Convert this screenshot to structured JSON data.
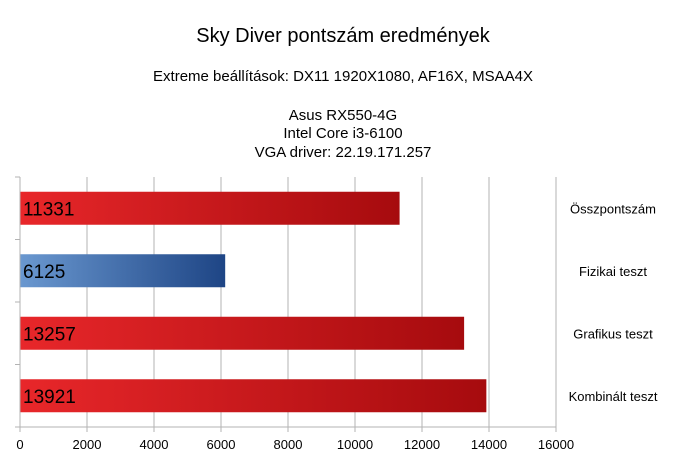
{
  "chart_data": {
    "type": "bar",
    "orientation": "horizontal",
    "title": "Sky Diver pontszám eredmények",
    "subtitle": "Extreme beállítások: DX11 1920X1080, AF16X, MSAA4X",
    "info_lines": [
      "Asus RX550-4G",
      "Intel Core i3-6100",
      "VGA driver: 22.19.171.257"
    ],
    "categories": [
      "Összpontszám",
      "Fizikai teszt",
      "Grafikus teszt",
      "Kombinált teszt"
    ],
    "values": [
      11331,
      6125,
      13257,
      13921
    ],
    "value_labels": [
      "11331",
      "6125",
      "13257",
      "13921"
    ],
    "bar_colors": [
      "#cc1f1f",
      "#3a6aa8",
      "#cc1f1f",
      "#cc1f1f"
    ],
    "xlim": [
      0,
      16000
    ],
    "xticks": [
      0,
      2000,
      4000,
      6000,
      8000,
      10000,
      12000,
      14000,
      16000
    ],
    "xtick_labels": [
      "0",
      "2000",
      "4000",
      "6000",
      "8000",
      "10000",
      "12000",
      "14000",
      "16000"
    ],
    "category_labels_position": "right",
    "grid": true
  }
}
